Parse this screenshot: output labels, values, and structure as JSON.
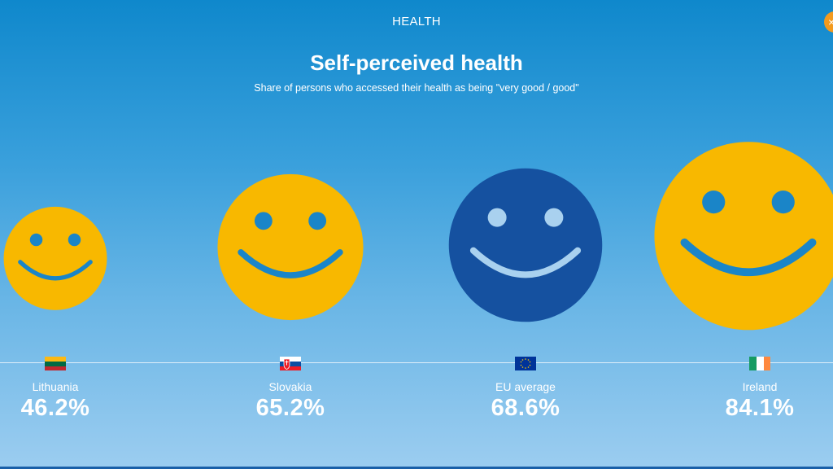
{
  "header": {
    "section": "HEALTH",
    "close_symbol": "×"
  },
  "chart_data": {
    "type": "bar",
    "title": "Self-perceived health",
    "subtitle": "Share of persons who accessed their health as being \"very good / good\"",
    "categories": [
      "Lithuania",
      "Slovakia",
      "EU average",
      "Ireland"
    ],
    "values": [
      46.2,
      65.2,
      68.6,
      84.1
    ],
    "value_labels": [
      "46.2%",
      "65.2%",
      "68.6%",
      "84.1%"
    ],
    "unit": "%",
    "highlight_category": "EU average",
    "colors": {
      "country_face": "#f8b800",
      "country_features": "#1a85c8",
      "eu_face": "#1551a0",
      "eu_features": "#a9d1ef"
    }
  },
  "flags": {
    "Lithuania": "lithuania-flag-icon",
    "Slovakia": "slovakia-flag-icon",
    "EU average": "eu-flag-icon",
    "Ireland": "ireland-flag-icon"
  }
}
